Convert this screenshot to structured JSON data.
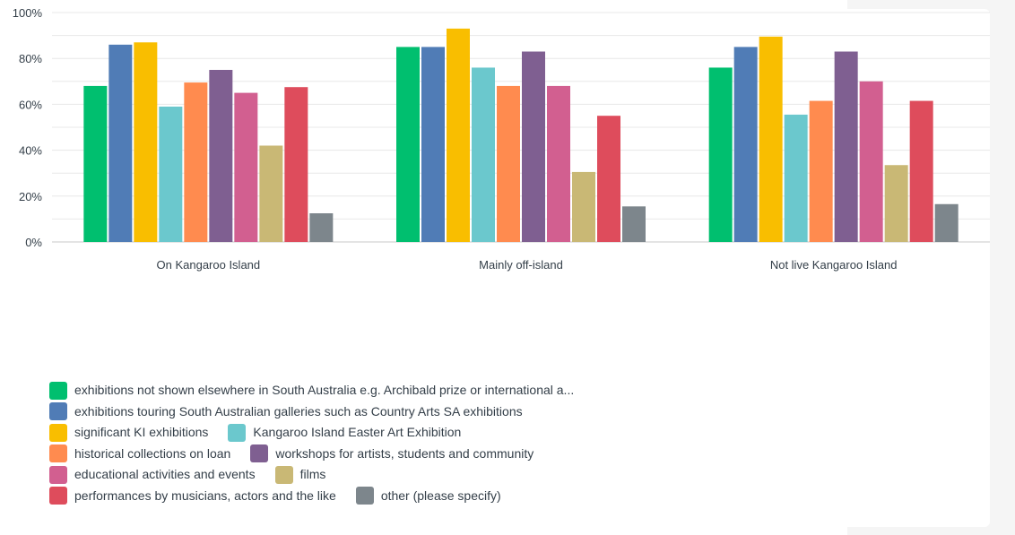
{
  "chart_data": {
    "type": "bar",
    "categories": [
      "On Kangaroo Island",
      "Mainly off-island",
      "Not live Kangaroo Island"
    ],
    "ylim": [
      0,
      100
    ],
    "yticks": [
      "0%",
      "20%",
      "40%",
      "60%",
      "80%",
      "100%"
    ],
    "grid": true,
    "legend_position": "bottom-left",
    "series": [
      {
        "name": "exhibitions not shown elsewhere in South Australia e.g. Archibald prize or international a...",
        "color": "#00bf6f",
        "values": [
          68,
          85,
          76
        ]
      },
      {
        "name": "exhibitions touring South Australian galleries such as Country Arts SA exhibitions",
        "color": "#507cb6",
        "values": [
          86,
          85,
          85
        ]
      },
      {
        "name": "significant KI exhibitions",
        "color": "#f9be00",
        "values": [
          87,
          93,
          89.5
        ]
      },
      {
        "name": "Kangaroo Island Easter Art Exhibition",
        "color": "#6bc8cd",
        "values": [
          59,
          76,
          55.5
        ]
      },
      {
        "name": "historical collections on loan",
        "color": "#ff8b4f",
        "values": [
          69.5,
          68,
          61.5
        ]
      },
      {
        "name": "workshops for artists, students and community",
        "color": "#7f5f91",
        "values": [
          75,
          83,
          83
        ]
      },
      {
        "name": "educational activities and events",
        "color": "#d25f90",
        "values": [
          65,
          68,
          70
        ]
      },
      {
        "name": "films",
        "color": "#c9b875",
        "values": [
          42,
          30.5,
          33.5
        ]
      },
      {
        "name": "performances by musicians, actors and the like",
        "color": "#de4c5c",
        "values": [
          67.5,
          55,
          61.5
        ]
      },
      {
        "name": "other (please specify)",
        "color": "#7d868c",
        "values": [
          12.5,
          15.5,
          16.5
        ]
      }
    ]
  },
  "legend_rows": [
    [
      0
    ],
    [
      1
    ],
    [
      2,
      3
    ],
    [
      4,
      5
    ],
    [
      6,
      7
    ],
    [
      8,
      9
    ]
  ]
}
